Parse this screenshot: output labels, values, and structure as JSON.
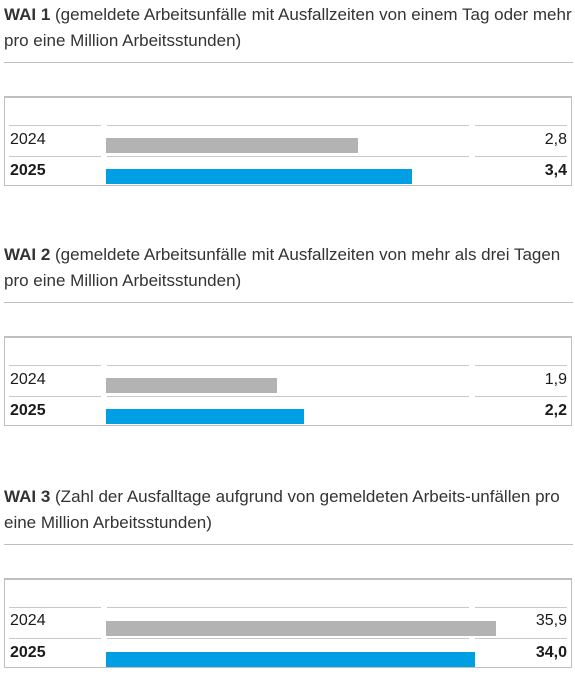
{
  "colors": {
    "bar_2024": "#b3b3b3",
    "bar_2025": "#009fe3"
  },
  "chart_data": [
    {
      "type": "bar",
      "orientation": "horizontal",
      "title_code": "WAI 1",
      "title_text": " (gemeldete Arbeitsunfälle mit Ausfallzeiten von einem Tag oder mehr pro eine Million Arbeitsstunden)",
      "categories": [
        "2024",
        "2025"
      ],
      "values": [
        2.8,
        3.4
      ],
      "value_labels": [
        "2,8",
        "3,4"
      ],
      "xlim": [
        0,
        4.9
      ]
    },
    {
      "type": "bar",
      "orientation": "horizontal",
      "title_code": "WAI 2",
      "title_text": " (gemeldete Arbeitsunfälle mit Ausfallzeiten von mehr als drei Tagen pro eine Million Arbeitsstunden)",
      "categories": [
        "2024",
        "2025"
      ],
      "values": [
        1.9,
        2.2
      ],
      "value_labels": [
        "1,9",
        "2,2"
      ],
      "xlim": [
        0,
        4.9
      ]
    },
    {
      "type": "bar",
      "orientation": "horizontal",
      "title_code": "WAI 3",
      "title_text": " (Zahl der Ausfalltage aufgrund von gemeldeten Arbeits-unfällen pro eine Million Arbeitsstunden)",
      "categories": [
        "2024",
        "2025"
      ],
      "values": [
        35.9,
        34.0
      ],
      "value_labels": [
        "35,9",
        "34,0"
      ],
      "xlim": [
        0,
        40.6
      ]
    }
  ]
}
